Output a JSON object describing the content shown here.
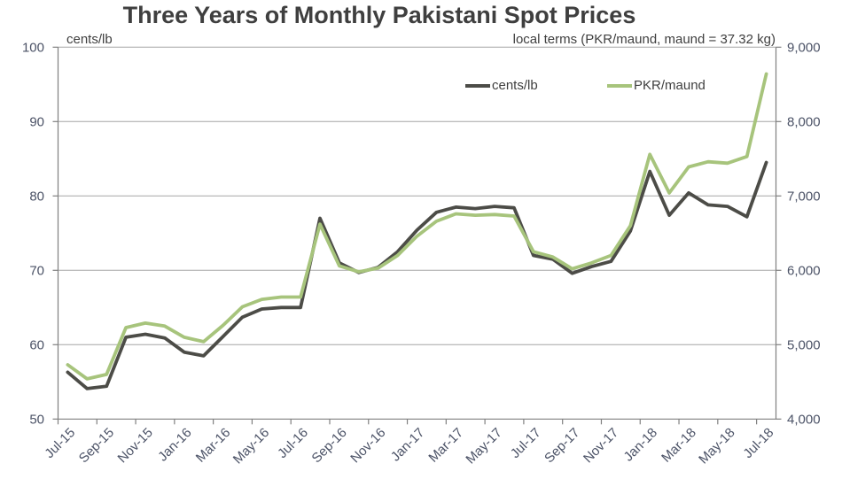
{
  "title": "Three Years of Monthly Pakistani Spot Prices",
  "colors": {
    "cents_lb_line": "#4c4c47",
    "pkr_maund_line": "#a7c47c",
    "grid": "#a6a6a6",
    "axis": "#808080",
    "tick_text": "#4b5266",
    "text": "#3f3f3f"
  },
  "legend": {
    "series1_label": "cents/lb",
    "series2_label": "PKR/maund"
  },
  "chart_data": {
    "type": "line",
    "title": "Three Years of Monthly Pakistani Spot Prices",
    "grid": true,
    "legend_position": "top-inside",
    "x": [
      "Jul-15",
      "Aug-15",
      "Sep-15",
      "Oct-15",
      "Nov-15",
      "Dec-15",
      "Jan-16",
      "Feb-16",
      "Mar-16",
      "Apr-16",
      "May-16",
      "Jun-16",
      "Jul-16",
      "Aug-16",
      "Sep-16",
      "Oct-16",
      "Nov-16",
      "Dec-16",
      "Jan-17",
      "Feb-17",
      "Mar-17",
      "Apr-17",
      "May-17",
      "Jun-17",
      "Jul-17",
      "Aug-17",
      "Sep-17",
      "Oct-17",
      "Nov-17",
      "Dec-17",
      "Jan-18",
      "Feb-18",
      "Mar-18",
      "Apr-18",
      "May-18",
      "Jun-18",
      "Jul-18"
    ],
    "x_tick_labels": [
      "Jul-15",
      "Sep-15",
      "Nov-15",
      "Jan-16",
      "Mar-16",
      "May-16",
      "Jul-16",
      "Sep-16",
      "Nov-16",
      "Jan-17",
      "Mar-17",
      "May-17",
      "Jul-17",
      "Sep-17",
      "Nov-17",
      "Jan-18",
      "Mar-18",
      "May-18",
      "Jul-18"
    ],
    "left_axis": {
      "label": "cents/lb",
      "min": 50,
      "max": 100,
      "tick_values": [
        100,
        90,
        80,
        70,
        60,
        50
      ],
      "tick_labels": [
        "100",
        "90",
        "80",
        "70",
        "60",
        "50"
      ]
    },
    "right_axis": {
      "label": "local terms (PKR/maund, maund = 37.32 kg)",
      "min": 4000,
      "max": 9000,
      "tick_values": [
        9000,
        8000,
        7000,
        6000,
        5000,
        4000
      ],
      "tick_labels": [
        "9,000",
        "8,000",
        "7,000",
        "6,000",
        "5,000",
        "4,000"
      ]
    },
    "series": [
      {
        "name": "cents/lb",
        "axis": "left",
        "color": "#4c4c47",
        "values": [
          56.3,
          54.1,
          54.4,
          61.0,
          61.4,
          60.9,
          59.0,
          58.5,
          61.1,
          63.7,
          64.8,
          65.0,
          65.0,
          77.0,
          71.0,
          69.7,
          70.4,
          72.5,
          75.4,
          77.8,
          78.5,
          78.3,
          78.6,
          78.4,
          72.0,
          71.5,
          69.6,
          70.5,
          71.2,
          75.3,
          83.3,
          77.4,
          80.4,
          78.8,
          78.6,
          77.2,
          84.5
        ]
      },
      {
        "name": "PKR/maund",
        "axis": "right",
        "color": "#a7c47c",
        "values": [
          4730,
          4540,
          4600,
          5230,
          5290,
          5250,
          5100,
          5040,
          5260,
          5510,
          5610,
          5640,
          5640,
          6620,
          6060,
          5980,
          6030,
          6200,
          6460,
          6660,
          6760,
          6740,
          6750,
          6730,
          6250,
          6180,
          6020,
          6100,
          6200,
          6600,
          7560,
          7040,
          7390,
          7460,
          7440,
          7530,
          8640
        ]
      }
    ]
  }
}
